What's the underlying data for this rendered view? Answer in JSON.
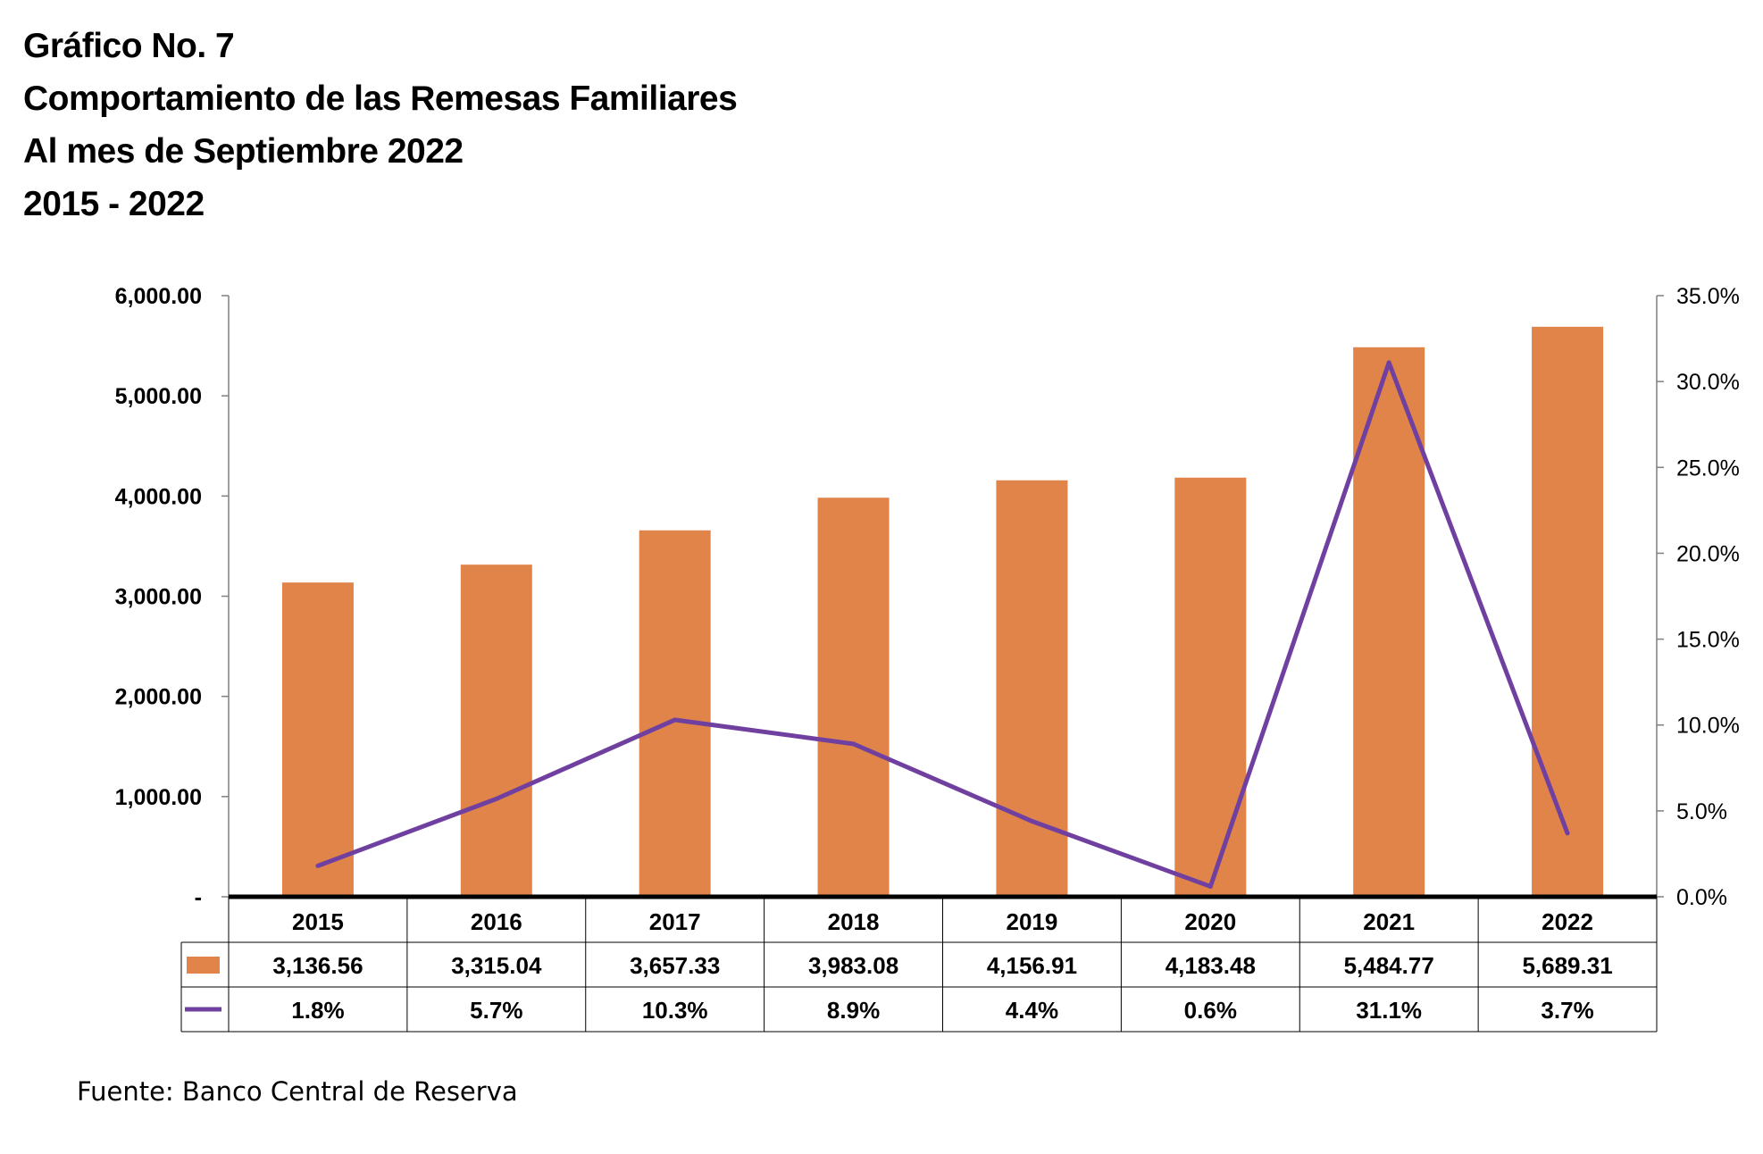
{
  "titles": [
    "Gráfico No. 7",
    "Comportamiento de las Remesas Familiares",
    "Al mes de Septiembre 2022",
    "2015 - 2022"
  ],
  "source": "Fuente:  Banco Central de Reserva",
  "chart_data": {
    "type": "bar",
    "categories": [
      "2015",
      "2016",
      "2017",
      "2018",
      "2019",
      "2020",
      "2021",
      "2022"
    ],
    "series": [
      {
        "kind": "bar",
        "axis": "left",
        "color": "#E0844A",
        "values": [
          3136.56,
          3315.04,
          3657.33,
          3983.08,
          4156.91,
          4183.48,
          5484.77,
          5689.31
        ],
        "table_labels": [
          "3,136.56",
          "3,315.04",
          "3,657.33",
          "3,983.08",
          "4,156.91",
          "4,183.48",
          "5,484.77",
          "5,689.31"
        ]
      },
      {
        "kind": "line",
        "axis": "right",
        "color": "#7040A0",
        "values": [
          1.8,
          5.7,
          10.3,
          8.9,
          4.4,
          0.6,
          31.1,
          3.7
        ],
        "table_labels": [
          "1.8%",
          "5.7%",
          "10.3%",
          "8.9%",
          "4.4%",
          "0.6%",
          "31.1%",
          "3.7%"
        ]
      }
    ],
    "left_axis": {
      "ylim": [
        0,
        6000
      ],
      "ticks": [
        0,
        1000,
        2000,
        3000,
        4000,
        5000,
        6000
      ],
      "tick_labels": [
        "-",
        "1,000.00",
        "2,000.00",
        "3,000.00",
        "4,000.00",
        "5,000.00",
        "6,000.00"
      ]
    },
    "right_axis": {
      "ylim": [
        0,
        35
      ],
      "ticks": [
        0,
        5,
        10,
        15,
        20,
        25,
        30,
        35
      ],
      "tick_labels": [
        "0.0%",
        "5.0%",
        "10.0%",
        "15.0%",
        "20.0%",
        "25.0%",
        "30.0%",
        "35.0%"
      ]
    },
    "data_table": true,
    "legend": "data-table-left",
    "grid": false
  }
}
